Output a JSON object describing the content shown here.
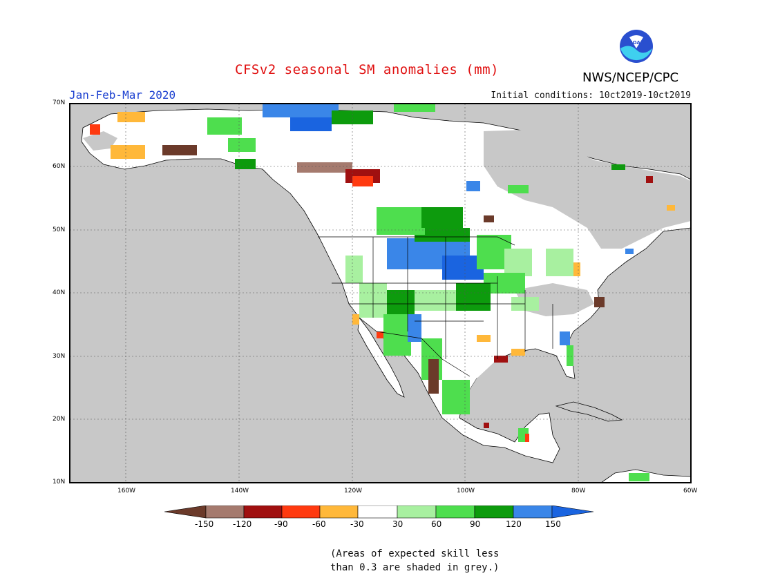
{
  "header": {
    "title": "CFSv2 seasonal SM anomalies (mm)",
    "season": "Jan-Feb-Mar 2020",
    "initial_conditions": "Initial conditions: 10ct2019-10ct2019",
    "agency": "NWS/NCEP/CPC",
    "logo_text": "NOAA"
  },
  "map": {
    "lat_labels": [
      "70N",
      "60N",
      "50N",
      "40N",
      "30N",
      "20N",
      "10N"
    ],
    "lon_labels": [
      "160W",
      "140W",
      "120W",
      "100W",
      "80W",
      "60W"
    ],
    "lat_range": [
      10,
      70
    ],
    "lon_range": [
      -170,
      -60
    ],
    "grid": "dotted",
    "colors": {
      "land_no_skill": "#c8c8c8",
      "ocean": "#c8c8c8",
      "neutral_land": "#ffffff"
    }
  },
  "colorbar": {
    "ticks": [
      "-150",
      "-120",
      "-90",
      "-60",
      "-30",
      "30",
      "60",
      "90",
      "120",
      "150"
    ],
    "colors": [
      "#6b3a2a",
      "#a57a6e",
      "#a01010",
      "#ff3a10",
      "#ffb83a",
      "#ffffff",
      "#a8f0a0",
      "#4ede4e",
      "#0d9b0d",
      "#3a86e8",
      "#1a64e0"
    ]
  },
  "footnote": {
    "line1": "(Areas of expected skill less",
    "line2": "than 0.3 are shaded in grey.)"
  }
}
